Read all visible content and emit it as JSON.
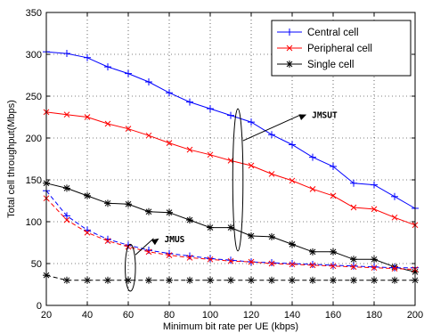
{
  "chart_data": {
    "type": "line",
    "title": "",
    "xlabel": "Minimum bit rate per UE (kbps)",
    "ylabel": "Total cell throughput(Mbps)",
    "xlim": [
      20,
      200
    ],
    "ylim": [
      0,
      350
    ],
    "xticks": [
      20,
      40,
      60,
      80,
      100,
      120,
      140,
      160,
      180,
      200
    ],
    "yticks": [
      0,
      50,
      100,
      150,
      200,
      250,
      300,
      350
    ],
    "grid": true,
    "legend_position": "top-right",
    "x": [
      20,
      30,
      40,
      50,
      60,
      70,
      80,
      90,
      100,
      110,
      120,
      130,
      140,
      150,
      160,
      170,
      180,
      190,
      200
    ],
    "series": [
      {
        "name": "Central cell",
        "group": "JMSUT",
        "color": "#0000ff",
        "marker": "plus",
        "dash": "solid",
        "values": [
          303,
          301,
          296,
          285,
          277,
          267,
          254,
          243,
          235,
          227,
          219,
          204,
          192,
          177,
          166,
          146,
          144,
          130,
          116
        ]
      },
      {
        "name": "Peripheral cell",
        "group": "JMSUT",
        "color": "#ff0000",
        "marker": "x",
        "dash": "solid",
        "values": [
          231,
          228,
          225,
          217,
          211,
          203,
          194,
          186,
          180,
          173,
          167,
          157,
          149,
          139,
          131,
          117,
          115,
          105,
          96
        ]
      },
      {
        "name": "Single cell",
        "group": "JMSUT",
        "color": "#000000",
        "marker": "star",
        "dash": "solid",
        "values": [
          146,
          140,
          131,
          122,
          121,
          112,
          111,
          102,
          93,
          93,
          83,
          82,
          73,
          64,
          64,
          55,
          55,
          46,
          40
        ]
      },
      {
        "name": "",
        "group": "JMUS",
        "color": "#0000ff",
        "marker": "plus",
        "dash": "dashed",
        "values": [
          137,
          107,
          90,
          79,
          72,
          66,
          62,
          59,
          56,
          54,
          52,
          51,
          50,
          49,
          48,
          47,
          46,
          45,
          45
        ]
      },
      {
        "name": "",
        "group": "JMUS",
        "color": "#ff0000",
        "marker": "x",
        "dash": "dashed",
        "values": [
          128,
          102,
          87,
          77,
          70,
          64,
          60,
          57,
          55,
          53,
          52,
          50,
          49,
          48,
          47,
          46,
          45,
          44,
          43
        ]
      },
      {
        "name": "",
        "group": "JMUS",
        "color": "#000000",
        "marker": "star",
        "dash": "dashed",
        "values": [
          36,
          30,
          30,
          30,
          30,
          30,
          30,
          30,
          30,
          30,
          30,
          30,
          30,
          30,
          30,
          30,
          30,
          30,
          30
        ]
      }
    ],
    "annotations": [
      {
        "text": "JMSUT",
        "center": [
          113.5,
          150
        ],
        "x_radius": 2.5,
        "y_radius": 85,
        "arrow_to": [
          147,
          228
        ]
      },
      {
        "text": "JMUS",
        "center": [
          61,
          45
        ],
        "x_radius": 2.5,
        "y_radius": 28,
        "arrow_to": [
          75,
          80
        ]
      }
    ]
  }
}
